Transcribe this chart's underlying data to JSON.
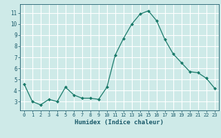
{
  "x": [
    0,
    1,
    2,
    3,
    4,
    5,
    6,
    7,
    8,
    9,
    10,
    11,
    12,
    13,
    14,
    15,
    16,
    17,
    18,
    19,
    20,
    21,
    22,
    23
  ],
  "y": [
    4.6,
    3.0,
    2.7,
    3.2,
    3.0,
    4.3,
    3.6,
    3.3,
    3.3,
    3.2,
    4.3,
    7.2,
    8.7,
    10.0,
    10.9,
    11.2,
    10.3,
    8.6,
    7.3,
    6.5,
    5.7,
    5.6,
    5.1,
    4.2
  ],
  "line_color": "#1a7a6a",
  "marker": "D",
  "marker_size": 2.0,
  "bg_color": "#ceeae8",
  "grid_color": "#ffffff",
  "xlabel": "Humidex (Indice chaleur)",
  "xlabel_color": "#1a5a6a",
  "tick_color": "#1a5a6a",
  "ylim": [
    2.2,
    11.8
  ],
  "xlim": [
    -0.5,
    23.5
  ],
  "yticks": [
    3,
    4,
    5,
    6,
    7,
    8,
    9,
    10,
    11
  ],
  "xticks": [
    0,
    1,
    2,
    3,
    4,
    5,
    6,
    7,
    8,
    9,
    10,
    11,
    12,
    13,
    14,
    15,
    16,
    17,
    18,
    19,
    20,
    21,
    22,
    23
  ]
}
